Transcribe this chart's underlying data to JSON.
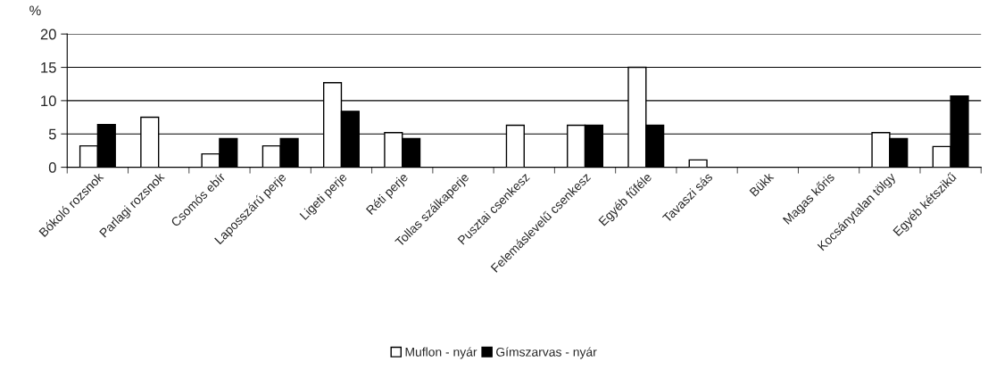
{
  "chart_data": {
    "type": "bar",
    "ylabel": "%",
    "categories": [
      "Bókoló rozsnok",
      "Parlagi rozsnok",
      "Csomós ebír",
      "Laposszárú perje",
      "Ligeti perje",
      "Réti perje",
      "Tollas szálkaperje",
      "Pusztai csenkesz",
      "Felemáslevelű csenkesz",
      "Egyéb fűféle",
      "Tavaszi sás",
      "Bükk",
      "Magas kőris",
      "Kocsánytalan tölgy",
      "Egyéb kétszikű"
    ],
    "series": [
      {
        "name": "Muflon - nyár",
        "color": "#ffffff",
        "values": [
          3.2,
          7.5,
          2.0,
          3.2,
          12.7,
          5.2,
          null,
          6.3,
          6.3,
          15.0,
          1.1,
          null,
          null,
          5.2,
          3.1
        ]
      },
      {
        "name": "Gímszarvas - nyár",
        "color": "#000000",
        "values": [
          6.4,
          null,
          4.3,
          4.3,
          8.4,
          4.3,
          null,
          null,
          6.3,
          6.3,
          null,
          null,
          null,
          4.3,
          10.7
        ]
      }
    ],
    "ylim": [
      0,
      20
    ],
    "yticks": [
      0,
      5,
      10,
      15,
      20
    ],
    "grid": "y",
    "legend": "bottom"
  }
}
